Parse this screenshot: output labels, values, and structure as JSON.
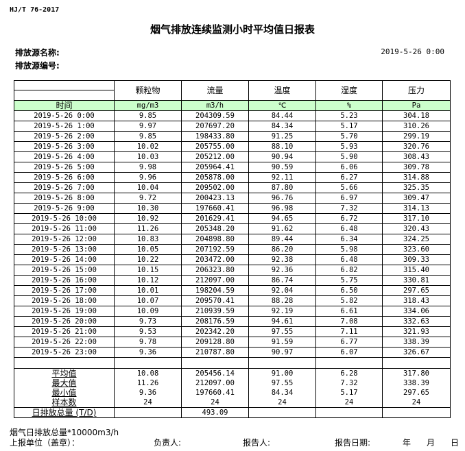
{
  "standard": "HJ/T  76-2017",
  "title": "烟气排放连续监测小时平均值日报表",
  "source_name_label": "排放源名称:",
  "source_code_label": "排放源编号:",
  "report_datetime": "2019-5-26 0:00",
  "table": {
    "headers": [
      "",
      "颗粒物",
      "流量",
      "温度",
      "湿度",
      "压力"
    ],
    "units": [
      "时间",
      "mg/m3",
      "m3/h",
      "℃",
      "%",
      "Pa"
    ],
    "rows": [
      [
        "2019-5-26 0:00",
        "9.85",
        "204309.59",
        "84.44",
        "5.23",
        "304.18"
      ],
      [
        "2019-5-26 1:00",
        "9.97",
        "207697.20",
        "84.34",
        "5.17",
        "310.26"
      ],
      [
        "2019-5-26 2:00",
        "9.85",
        "198433.80",
        "91.25",
        "5.70",
        "299.19"
      ],
      [
        "2019-5-26 3:00",
        "10.02",
        "205755.00",
        "88.10",
        "5.93",
        "320.76"
      ],
      [
        "2019-5-26 4:00",
        "10.03",
        "205212.00",
        "90.94",
        "5.90",
        "308.43"
      ],
      [
        "2019-5-26 5:00",
        "9.98",
        "205964.41",
        "90.59",
        "6.06",
        "309.78"
      ],
      [
        "2019-5-26 6:00",
        "9.96",
        "205878.00",
        "92.11",
        "6.27",
        "314.88"
      ],
      [
        "2019-5-26 7:00",
        "10.04",
        "209502.00",
        "87.80",
        "5.66",
        "325.35"
      ],
      [
        "2019-5-26 8:00",
        "9.72",
        "200423.13",
        "96.76",
        "6.97",
        "309.47"
      ],
      [
        "2019-5-26 9:00",
        "10.30",
        "197660.41",
        "96.98",
        "7.32",
        "314.13"
      ],
      [
        "2019-5-26 10:00",
        "10.92",
        "201629.41",
        "94.65",
        "6.72",
        "317.10"
      ],
      [
        "2019-5-26 11:00",
        "11.26",
        "205348.20",
        "91.62",
        "6.48",
        "320.43"
      ],
      [
        "2019-5-26 12:00",
        "10.83",
        "204898.80",
        "89.44",
        "6.34",
        "324.25"
      ],
      [
        "2019-5-26 13:00",
        "10.05",
        "207192.59",
        "86.20",
        "5.98",
        "323.60"
      ],
      [
        "2019-5-26 14:00",
        "10.22",
        "203472.00",
        "92.38",
        "6.48",
        "309.33"
      ],
      [
        "2019-5-26 15:00",
        "10.15",
        "206323.80",
        "92.36",
        "6.82",
        "315.40"
      ],
      [
        "2019-5-26 16:00",
        "10.12",
        "212097.00",
        "86.74",
        "5.75",
        "330.81"
      ],
      [
        "2019-5-26 17:00",
        "10.01",
        "198204.59",
        "92.04",
        "6.50",
        "297.65"
      ],
      [
        "2019-5-26 18:00",
        "10.07",
        "209570.41",
        "88.28",
        "5.82",
        "318.43"
      ],
      [
        "2019-5-26 19:00",
        "10.09",
        "210939.59",
        "92.19",
        "6.61",
        "334.06"
      ],
      [
        "2019-5-26 20:00",
        "9.73",
        "208176.59",
        "94.61",
        "7.08",
        "332.63"
      ],
      [
        "2019-5-26 21:00",
        "9.53",
        "202342.20",
        "97.55",
        "7.11",
        "321.93"
      ],
      [
        "2019-5-26 22:00",
        "9.78",
        "209128.80",
        "91.59",
        "6.77",
        "338.39"
      ],
      [
        "2019-5-26 23:00",
        "9.36",
        "210787.80",
        "90.97",
        "6.07",
        "326.67"
      ]
    ],
    "summary": [
      [
        "平均值",
        "10.08",
        "205456.14",
        "91.00",
        "6.28",
        "317.80"
      ],
      [
        "最大值",
        "11.26",
        "212097.00",
        "97.55",
        "7.32",
        "338.39"
      ],
      [
        "最小值",
        "9.36",
        "197660.41",
        "84.34",
        "5.17",
        "297.65"
      ],
      [
        "样本数",
        "24",
        "24",
        "24",
        "24",
        "24"
      ],
      [
        "日排放总量 (T/D)",
        "",
        "493.09",
        "",
        "",
        ""
      ]
    ]
  },
  "footer": {
    "note": "烟气日排放总量*10000m3/h",
    "unit_label": "上报单位（盖章）：",
    "responsible_label": "负责人:",
    "reporter_label": "报告人:",
    "date_label": "报告日期:",
    "year": "年",
    "month": "月",
    "day": "日"
  }
}
